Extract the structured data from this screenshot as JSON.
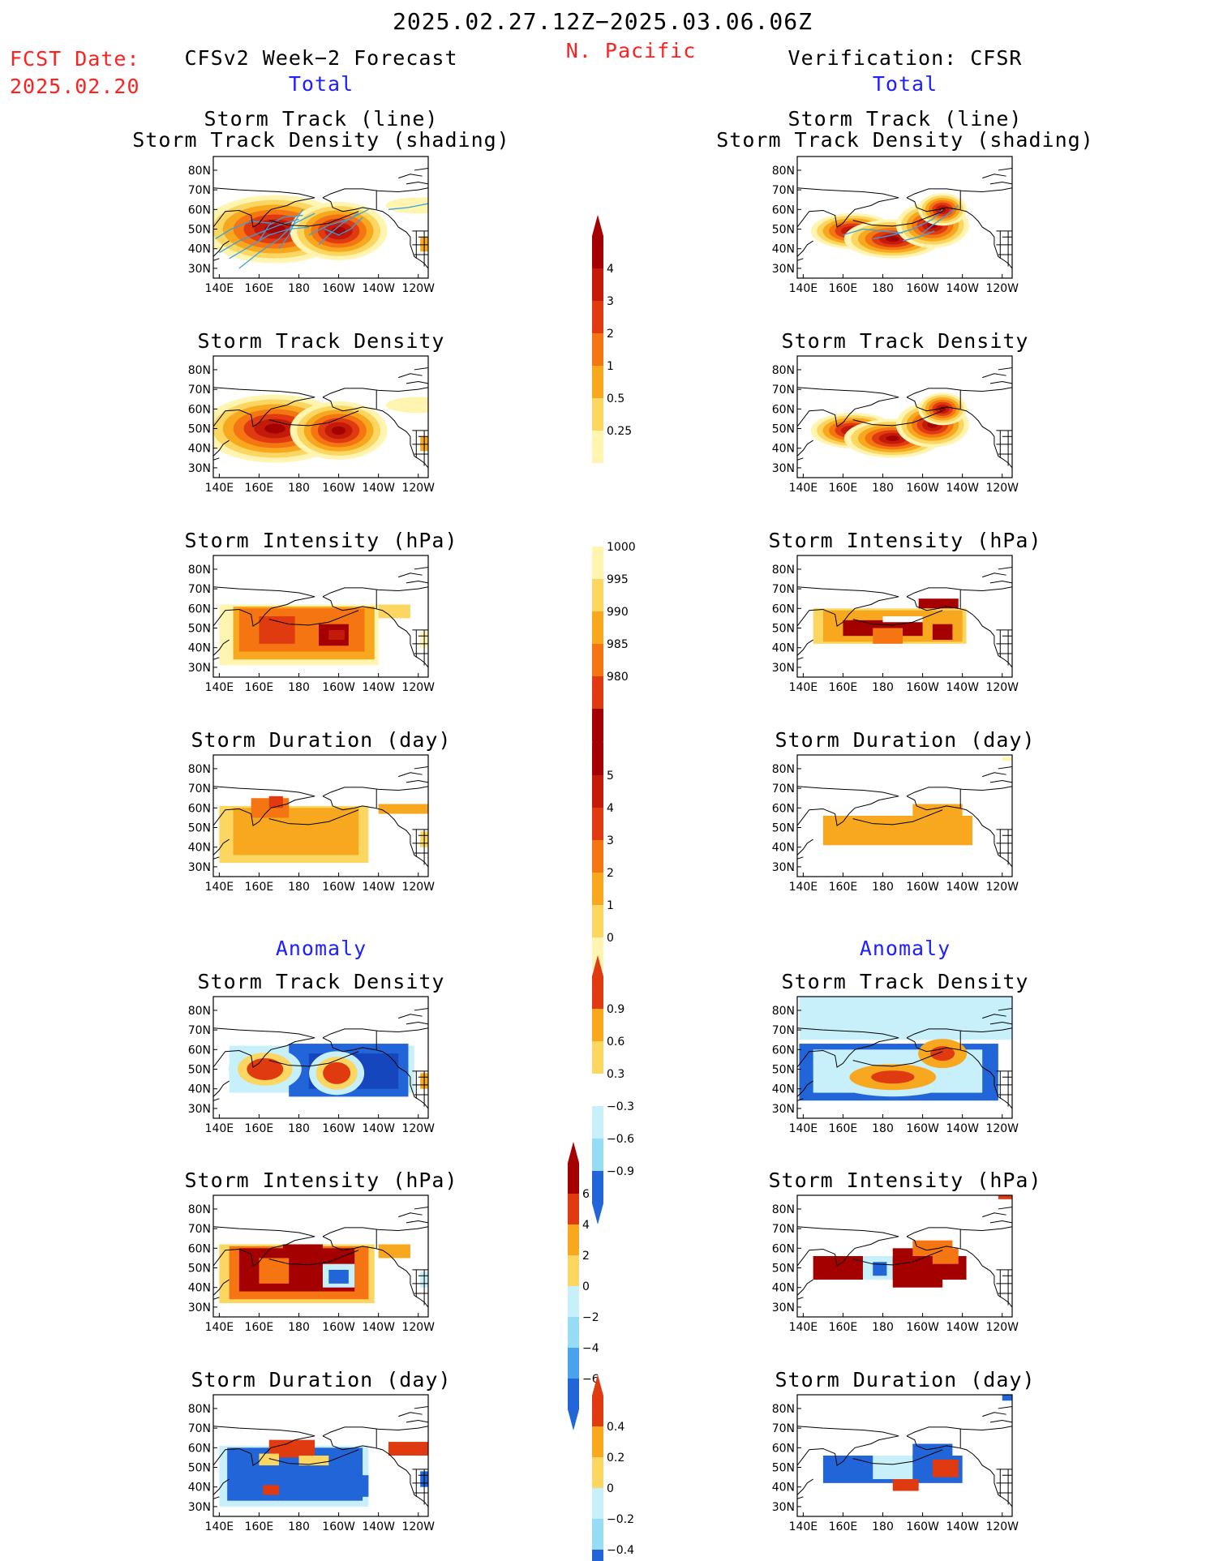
{
  "header": {
    "date_range": "2025.02.27.12Z−2025.03.06.06Z",
    "region": "N. Pacific",
    "fcst_label": "FCST Date:",
    "fcst_date": "2025.02.20",
    "left_title": "CFSv2 Week−2 Forecast",
    "right_title": "Verification: CFSR",
    "total_label": "Total",
    "anomaly_label": "Anomaly"
  },
  "panel_titles": {
    "track": [
      "Storm Track (line)",
      "Storm Track Density (shading)"
    ],
    "density": "Storm Track Density",
    "intensity": "Storm Intensity (hPa)",
    "duration": "Storm Duration (day)"
  },
  "axes": {
    "lat_labels": [
      "80N",
      "70N",
      "60N",
      "50N",
      "40N",
      "30N"
    ],
    "lon_labels": [
      "140E",
      "160E",
      "180",
      "160W",
      "140W",
      "120W"
    ]
  },
  "colorbars": {
    "density": [
      "4",
      "3",
      "2",
      "1",
      "0.5",
      "0.25"
    ],
    "intensity": [
      "1000",
      "995",
      "990",
      "985",
      "980"
    ],
    "duration": [
      "5",
      "4",
      "3",
      "2",
      "1",
      "0"
    ],
    "density_anom": [
      "0.9",
      "0.6",
      "0.3",
      "−0.3",
      "−0.6",
      "−0.9"
    ],
    "intensity_anom": [
      "6",
      "4",
      "2",
      "0",
      "−2",
      "−4",
      "−6"
    ],
    "duration_anom": [
      "0.4",
      "0.2",
      "0",
      "−0.2",
      "−0.4"
    ]
  },
  "colors": {
    "warm": [
      "#fff5b0",
      "#fbd661",
      "#f8a81e",
      "#f57512",
      "#e03b10",
      "#c41a0a",
      "#a50000"
    ],
    "cool": [
      "#c8f0fa",
      "#96dcf5",
      "#4aa2ec",
      "#2165d8",
      "#1646bd"
    ],
    "track_line": "#3aa0e0"
  }
}
